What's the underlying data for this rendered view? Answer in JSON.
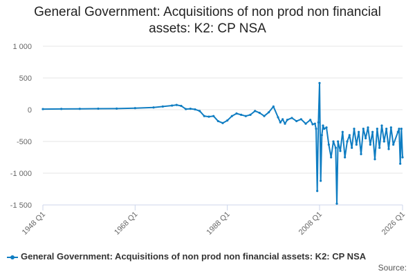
{
  "chart_data": {
    "type": "line",
    "title": "General Government: Acquisitions of non prod non financial assets: K2: CP NSA",
    "source": "Source:",
    "x": [
      1948,
      1952,
      1956,
      1960,
      1964,
      1968,
      1972,
      1974,
      1976,
      1977,
      1978,
      1979,
      1980,
      1981,
      1982,
      1983,
      1984,
      1985,
      1986,
      1987,
      1988,
      1989,
      1990,
      1991,
      1992,
      1993,
      1994,
      1995,
      1996,
      1997,
      1998,
      1999,
      1999.5,
      2000,
      2000.5,
      2001,
      2002,
      2003,
      2004,
      2005,
      2006,
      2006.5,
      2007,
      2007.25,
      2007.5,
      2007.75,
      2008,
      2008.25,
      2008.5,
      2008.75,
      2009,
      2009.5,
      2010,
      2010.5,
      2011,
      2011.5,
      2011.75,
      2012,
      2012.5,
      2013,
      2013.5,
      2014,
      2014.5,
      2015,
      2015.5,
      2016,
      2016.5,
      2017,
      2017.5,
      2018,
      2018.5,
      2019,
      2019.5,
      2020,
      2020.5,
      2021,
      2021.5,
      2022,
      2022.5,
      2023,
      2023.5,
      2024,
      2025,
      2025.25,
      2025.5,
      2025.75,
      2026
    ],
    "series": [
      {
        "name": "General Government: Acquisitions of non prod non financial assets: K2: CP NSA",
        "color": "#0f7dc2",
        "values": [
          10,
          12,
          14,
          16,
          18,
          25,
          35,
          50,
          65,
          75,
          60,
          10,
          15,
          5,
          -20,
          -100,
          -110,
          -100,
          -180,
          -210,
          -170,
          -100,
          -60,
          -80,
          -100,
          -80,
          -20,
          -50,
          -100,
          -40,
          50,
          -120,
          -200,
          -150,
          -220,
          -160,
          -130,
          -180,
          -150,
          -220,
          -160,
          -230,
          -220,
          -300,
          -1280,
          -200,
          420,
          -1120,
          -400,
          -250,
          -300,
          -280,
          -550,
          -750,
          -500,
          -600,
          -1480,
          -500,
          -650,
          -350,
          -750,
          -500,
          -400,
          -600,
          -300,
          -550,
          -350,
          -700,
          -300,
          -450,
          -280,
          -550,
          -350,
          -780,
          -300,
          -600,
          -250,
          -500,
          -300,
          -620,
          -280,
          -550,
          -350,
          -300,
          -850,
          -300,
          -750
        ]
      }
    ],
    "xlim": [
      1948,
      2026
    ],
    "xticks": [
      {
        "value": 1948,
        "label": "1948 Q1"
      },
      {
        "value": 1968,
        "label": "1968 Q1"
      },
      {
        "value": 1988,
        "label": "1988 Q1"
      },
      {
        "value": 2008,
        "label": "2008 Q1"
      },
      {
        "value": 2026,
        "label": "2026 Q1"
      }
    ],
    "ylim": [
      -1500,
      1000
    ],
    "yticks": [
      {
        "value": 1000,
        "label": "1 000"
      },
      500,
      0,
      -500,
      {
        "value": -1000,
        "label": "-1 000"
      },
      {
        "value": -1500,
        "label": "-1 500"
      }
    ],
    "grid": true
  }
}
